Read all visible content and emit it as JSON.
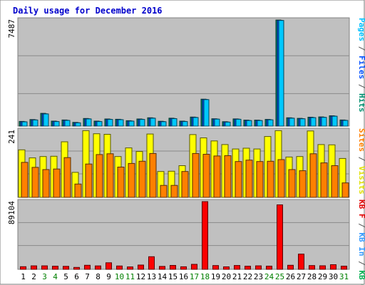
{
  "chart_data": {
    "type": "bar",
    "title": "Daily usage for December 2016",
    "categories": [
      "1",
      "2",
      "3",
      "4",
      "5",
      "6",
      "7",
      "8",
      "9",
      "10",
      "11",
      "12",
      "13",
      "14",
      "15",
      "16",
      "17",
      "18",
      "19",
      "20",
      "21",
      "22",
      "23",
      "24",
      "25",
      "26",
      "27",
      "28",
      "29",
      "30",
      "31"
    ],
    "weekend_days": [
      "3",
      "4",
      "10",
      "11",
      "17",
      "18",
      "24",
      "25",
      "31"
    ],
    "weekend_color": "#008000",
    "weekday_color": "#000000",
    "panels": [
      {
        "id": "pages_files_hits",
        "ymax": 7487,
        "ymax_label": "7487",
        "right_label": [
          {
            "text": "Pages",
            "color": "#00c0ff"
          },
          {
            "text": " / ",
            "color": "#555555"
          },
          {
            "text": "Files",
            "color": "#0050ff"
          },
          {
            "text": " / ",
            "color": "#555555"
          },
          {
            "text": "Hits",
            "color": "#009070"
          }
        ],
        "series": [
          {
            "name": "Hits",
            "color": "#009070",
            "values": [
              330,
              460,
              900,
              350,
              430,
              260,
              540,
              350,
              500,
              480,
              380,
              500,
              590,
              340,
              560,
              350,
              640,
              1900,
              520,
              310,
              510,
              420,
              420,
              470,
              7480,
              590,
              550,
              630,
              650,
              730,
              430
            ]
          },
          {
            "name": "Files",
            "color": "#0050ff",
            "values": [
              310,
              440,
              870,
              330,
              410,
              240,
              520,
              330,
              480,
              460,
              360,
              480,
              570,
              320,
              540,
              330,
              620,
              1880,
              500,
              290,
              490,
              400,
              400,
              450,
              7460,
              570,
              530,
              610,
              630,
              710,
              410
            ]
          },
          {
            "name": "Pages",
            "color": "#00c8ff",
            "values": [
              300,
              430,
              860,
              320,
              400,
              230,
              510,
              320,
              470,
              450,
              350,
              470,
              560,
              310,
              530,
              320,
              610,
              1870,
              490,
              280,
              480,
              390,
              390,
              440,
              7450,
              560,
              520,
              600,
              620,
              700,
              400
            ]
          }
        ]
      },
      {
        "id": "visits_sites",
        "ymax": 241,
        "ymax_label": "241",
        "right_label": [
          {
            "text": "Sites",
            "color": "#ff8000"
          },
          {
            "text": " / ",
            "color": "#555555"
          },
          {
            "text": "Visits",
            "color": "#e0e000"
          }
        ],
        "series": [
          {
            "name": "Visits",
            "color": "#ffff00",
            "values": [
              171,
              142,
              147,
              148,
              200,
              90,
              240,
              229,
              227,
              147,
              178,
              165,
              228,
              93,
              94,
              114,
              226,
              214,
              203,
              190,
              174,
              177,
              174,
              219,
              240,
              145,
              147,
              239,
              190,
              189,
              140
            ]
          },
          {
            "name": "Sites",
            "color": "#ff8000",
            "values": [
              126,
              108,
              100,
              102,
              143,
              48,
              120,
              154,
              157,
              109,
              122,
              130,
              158,
              43,
              43,
              93,
              158,
              155,
              149,
              150,
              129,
              134,
              129,
              130,
              136,
              100,
              96,
              157,
              124,
              114,
              52
            ]
          }
        ]
      },
      {
        "id": "kbf_kbin_kbout",
        "ymax": 89104,
        "ymax_label": "89104",
        "right_label": [
          {
            "text": "KB F",
            "color": "#e00000"
          },
          {
            "text": " / ",
            "color": "#555555"
          },
          {
            "text": "KB In",
            "color": "#3399ff"
          },
          {
            "text": " / ",
            "color": "#555555"
          },
          {
            "text": "KB Out",
            "color": "#00b050"
          }
        ],
        "series": [
          {
            "name": "KB F",
            "color": "#ff0000",
            "values": [
              3500,
              4600,
              4600,
              4100,
              3900,
              2500,
              5300,
              4500,
              8600,
              4400,
              3200,
              5600,
              16600,
              3800,
              5200,
              3400,
              6600,
              89100,
              5000,
              3300,
              5100,
              4100,
              4600,
              4200,
              84900,
              5300,
              20100,
              5000,
              4700,
              6100,
              4200
            ]
          }
        ]
      }
    ]
  }
}
